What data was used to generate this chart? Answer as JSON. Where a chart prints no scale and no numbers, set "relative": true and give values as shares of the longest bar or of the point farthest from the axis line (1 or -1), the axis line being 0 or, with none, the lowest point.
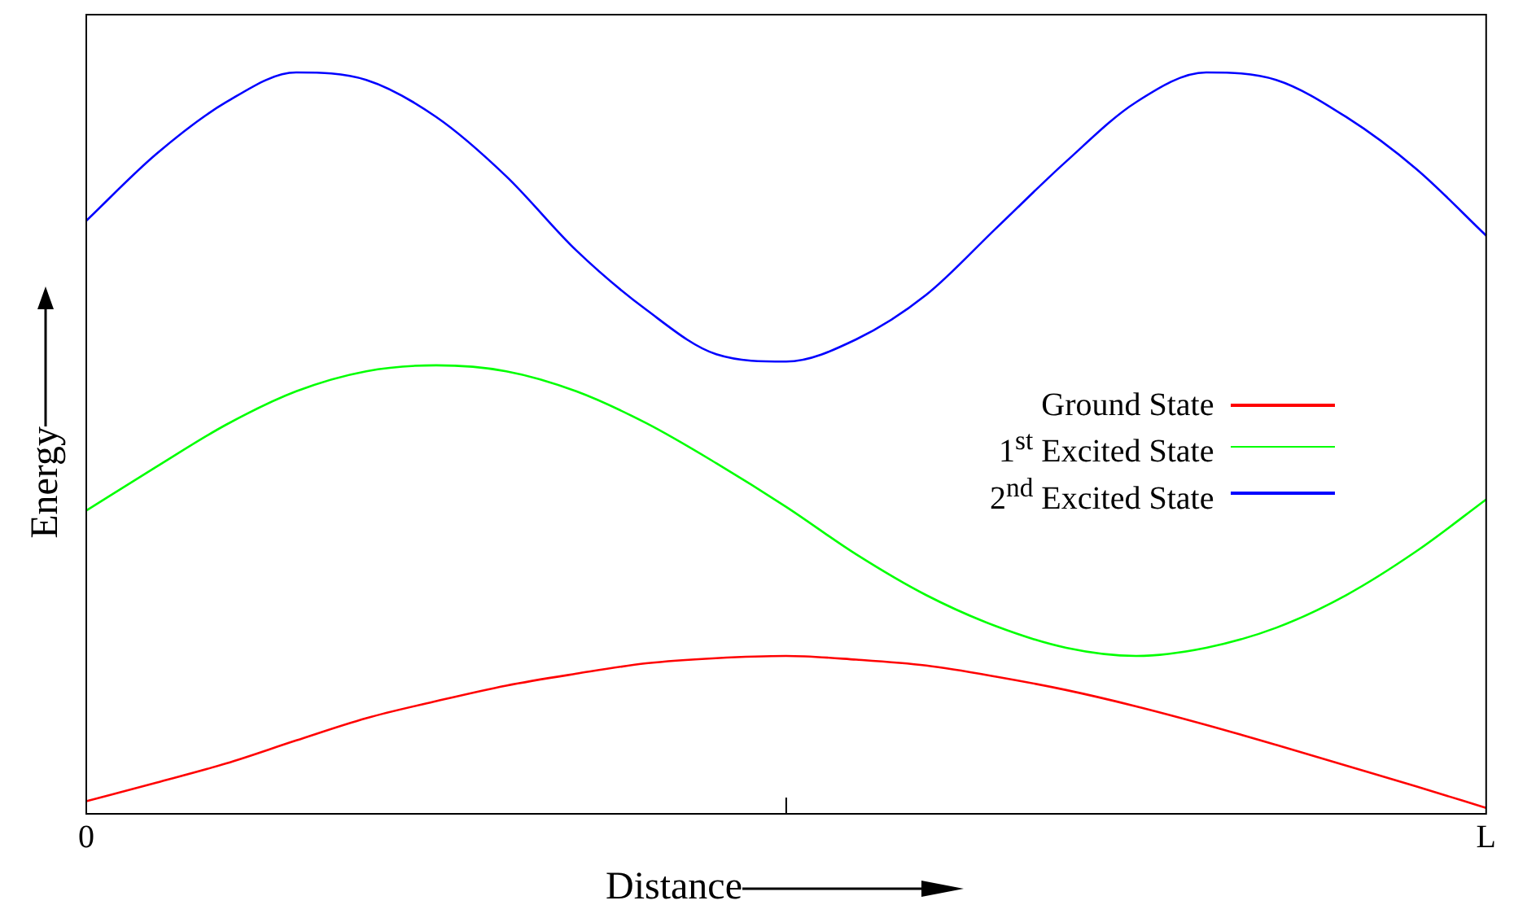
{
  "chart_data": {
    "type": "line",
    "relative": true,
    "xlabel": "Distance",
    "ylabel": "Energy",
    "categories": [
      "0",
      null,
      null,
      null,
      null,
      null,
      null,
      null,
      null,
      null,
      null,
      null,
      null,
      null,
      null,
      null,
      null,
      null,
      null,
      null,
      "L"
    ],
    "legend": "right",
    "grid": false,
    "marker": "none",
    "line_style": "solid",
    "series": [
      {
        "name": "Ground State",
        "color": "#ff0000",
        "values": [
          0.017,
          0.042,
          0.068,
          0.099,
          0.129,
          0.152,
          0.173,
          0.189,
          0.203,
          0.21,
          0.213,
          0.208,
          0.2,
          0.185,
          0.167,
          0.145,
          0.12,
          0.093,
          0.065,
          0.037,
          0.008
        ]
      },
      {
        "name": "1$^{st}$ Excited State",
        "color": "#00ff00",
        "values": [
          0.409,
          0.468,
          0.525,
          0.57,
          0.597,
          0.605,
          0.597,
          0.57,
          0.527,
          0.473,
          0.414,
          0.35,
          0.295,
          0.253,
          0.224,
          0.213,
          0.224,
          0.251,
          0.295,
          0.354,
          0.424
        ]
      },
      {
        "name": "2$^{nd}$ Excited State",
        "color": "#0000ff",
        "values": [
          0.8,
          0.89,
          0.96,
          1,
          0.99,
          0.94,
          0.86,
          0.76,
          0.68,
          0.62,
          0.61,
          0.64,
          0.7,
          0.79,
          0.88,
          0.96,
          1,
          0.99,
          0.94,
          0.87,
          0.78
        ]
      }
    ]
  }
}
